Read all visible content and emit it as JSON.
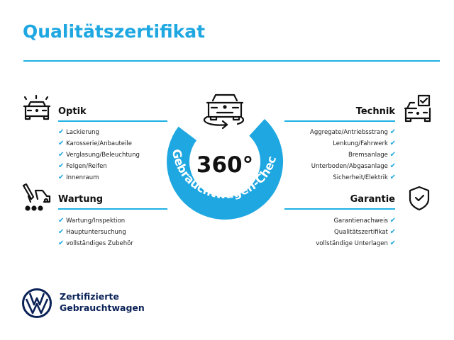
{
  "title": "Qualitätszertifikat",
  "badge": {
    "value": "360°",
    "label": "Gebrauchtwagen-Check",
    "color": "#1ea7e1"
  },
  "sections": {
    "optik": {
      "heading": "Optik",
      "icon": "car-lights-icon",
      "items": [
        "Lackierung",
        "Karosserie/Anbauteile",
        "Verglasung/Beleuchtung",
        "Felgen/Reifen",
        "Innenraum"
      ]
    },
    "wartung": {
      "heading": "Wartung",
      "icon": "service-tool-car-icon",
      "items": [
        "Wartung/Inspektion",
        "Hauptuntersuchung",
        "vollständiges Zubehör"
      ]
    },
    "technik": {
      "heading": "Technik",
      "icon": "car-checkbox-icon",
      "items": [
        "Aggregate/Antriebsstrang",
        "Lenkung/Fahrwerk",
        "Bremsanlage",
        "Unterboden/Abgasanlage",
        "Sicherheit/Elektrik"
      ]
    },
    "garantie": {
      "heading": "Garantie",
      "icon": "shield-check-icon",
      "items": [
        "Garantienachweis",
        "Qualitätszertifikat",
        "vollständige Unterlagen"
      ]
    }
  },
  "brand": {
    "line1": "Zertifizierte",
    "line2": "Gebrauchtwagen",
    "logo": "vw-logo",
    "color": "#0b2257"
  },
  "check_symbol": "✔",
  "colors": {
    "accent": "#1ea7e1",
    "text": "#111111"
  }
}
